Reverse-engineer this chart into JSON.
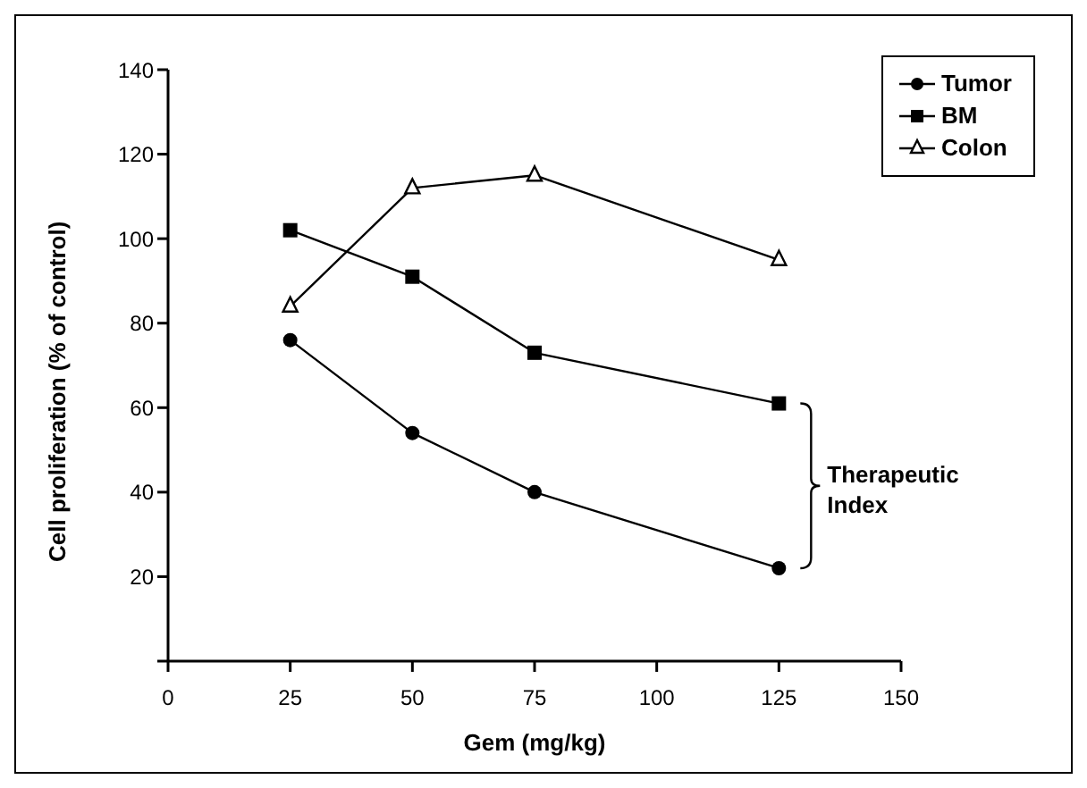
{
  "chart_data": {
    "type": "line",
    "xlabel": "Gem (mg/kg)",
    "ylabel": "Cell proliferation (% of control)",
    "x": [
      25,
      50,
      75,
      125
    ],
    "series": [
      {
        "name": "Tumor",
        "color": "#000000",
        "marker": "circle",
        "values": [
          76,
          54,
          40,
          22
        ]
      },
      {
        "name": "BM",
        "color": "#000000",
        "marker": "square",
        "values": [
          102,
          91,
          73,
          61
        ]
      },
      {
        "name": "Colon",
        "color": "#000000",
        "marker": "triangle",
        "values": [
          84,
          112,
          115,
          95
        ]
      }
    ],
    "xlim": [
      0,
      150
    ],
    "xticks": [
      0,
      25,
      50,
      75,
      100,
      125,
      150
    ],
    "ylim": [
      0,
      140
    ],
    "yticks": [
      {
        "value": 0,
        "label": null
      },
      20,
      40,
      60,
      80,
      100,
      120,
      140
    ],
    "grid": false,
    "legend": "top right",
    "line_style": "solid",
    "annotations": [
      "Therapeutic Index"
    ]
  }
}
